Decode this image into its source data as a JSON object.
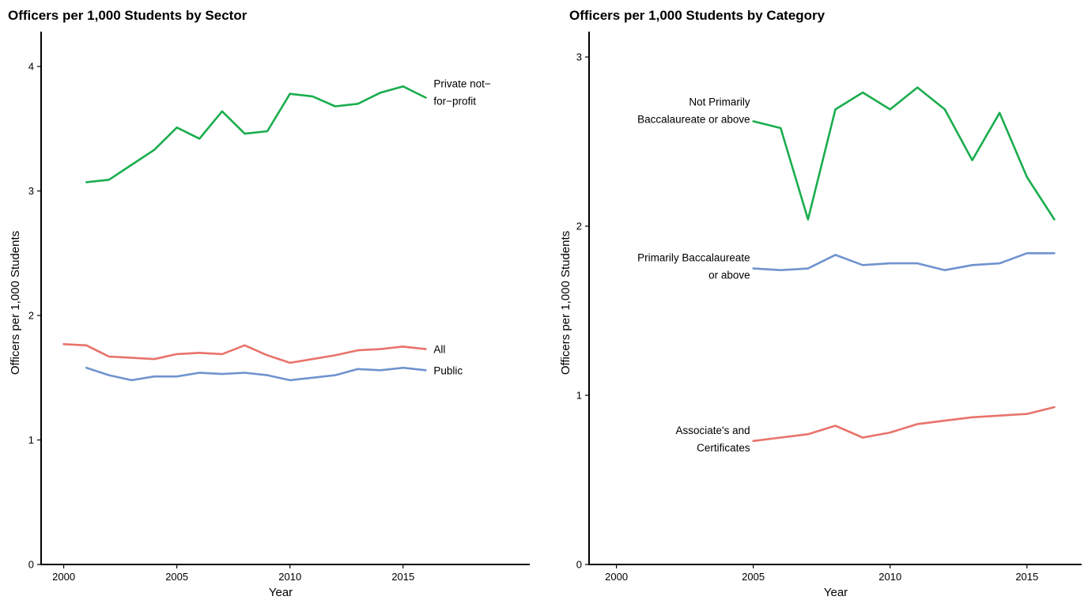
{
  "chart_data": [
    {
      "type": "line",
      "title": "Officers per 1,000 Students by Sector",
      "xlabel": "Year",
      "ylabel": "Officers per 1,000 Students",
      "xlim": [
        1999,
        2020.6
      ],
      "ylim": [
        0,
        4.28
      ],
      "xticks": [
        2000,
        2005,
        2010,
        2015
      ],
      "yticks": [
        0,
        1,
        2,
        3,
        4
      ],
      "grid": false,
      "legend": "direct-labels",
      "series": [
        {
          "name": "Private not−for−profit",
          "label_lines": [
            "Private not−",
            "for−profit"
          ],
          "color": "#1aad4e",
          "x": [
            2001,
            2002,
            2003,
            2004,
            2005,
            2006,
            2007,
            2008,
            2009,
            2010,
            2011,
            2012,
            2013,
            2014,
            2015,
            2016
          ],
          "values": [
            3.07,
            3.09,
            3.21,
            3.33,
            3.51,
            3.42,
            3.64,
            3.46,
            3.48,
            3.78,
            3.76,
            3.68,
            3.7,
            3.79,
            3.84,
            3.75
          ]
        },
        {
          "name": "All",
          "label_lines": [
            "All"
          ],
          "color": "#e8736b",
          "x": [
            2000,
            2001,
            2002,
            2003,
            2004,
            2005,
            2006,
            2007,
            2008,
            2009,
            2010,
            2011,
            2012,
            2013,
            2014,
            2015,
            2016
          ],
          "values": [
            1.77,
            1.76,
            1.67,
            1.66,
            1.65,
            1.69,
            1.7,
            1.69,
            1.76,
            1.68,
            1.62,
            1.65,
            1.68,
            1.72,
            1.73,
            1.75,
            1.73
          ]
        },
        {
          "name": "Public",
          "label_lines": [
            "Public"
          ],
          "color": "#6f93cf",
          "x": [
            2001,
            2002,
            2003,
            2004,
            2005,
            2006,
            2007,
            2008,
            2009,
            2010,
            2011,
            2012,
            2013,
            2014,
            2015,
            2016
          ],
          "values": [
            1.58,
            1.52,
            1.48,
            1.51,
            1.51,
            1.54,
            1.53,
            1.54,
            1.52,
            1.48,
            1.5,
            1.52,
            1.57,
            1.56,
            1.58,
            1.56
          ]
        }
      ]
    },
    {
      "type": "line",
      "title": "Officers per 1,000 Students by Category",
      "xlabel": "Year",
      "ylabel": "Officers per 1,000 Students",
      "xlim": [
        1999,
        2017
      ],
      "ylim": [
        0,
        3.15
      ],
      "xticks": [
        2000,
        2005,
        2010,
        2015
      ],
      "yticks": [
        0,
        1,
        2,
        3
      ],
      "grid": false,
      "legend": "direct-labels",
      "series": [
        {
          "name": "Not Primarily Baccalaureate or above",
          "label_lines": [
            "Not Primarily",
            "Baccalaureate or above"
          ],
          "color": "#1aad4e",
          "x": [
            2005,
            2006,
            2007,
            2008,
            2009,
            2010,
            2011,
            2012,
            2013,
            2014,
            2015,
            2016
          ],
          "values": [
            2.62,
            2.58,
            2.04,
            2.69,
            2.79,
            2.69,
            2.82,
            2.69,
            2.39,
            2.67,
            2.29,
            2.04
          ]
        },
        {
          "name": "Primarily Baccalaureate or above",
          "label_lines": [
            "Primarily Baccalaureate",
            "or above"
          ],
          "color": "#6f93cf",
          "x": [
            2005,
            2006,
            2007,
            2008,
            2009,
            2010,
            2011,
            2012,
            2013,
            2014,
            2015,
            2016
          ],
          "values": [
            1.75,
            1.74,
            1.75,
            1.83,
            1.77,
            1.78,
            1.78,
            1.74,
            1.77,
            1.78,
            1.84,
            1.84
          ]
        },
        {
          "name": "Associate's and Certificates",
          "label_lines": [
            "Associate's and",
            "Certificates"
          ],
          "color": "#e8736b",
          "x": [
            2005,
            2006,
            2007,
            2008,
            2009,
            2010,
            2011,
            2012,
            2013,
            2014,
            2015,
            2016
          ],
          "values": [
            0.73,
            0.75,
            0.77,
            0.82,
            0.75,
            0.78,
            0.83,
            0.85,
            0.87,
            0.88,
            0.89,
            0.93
          ]
        }
      ]
    }
  ]
}
